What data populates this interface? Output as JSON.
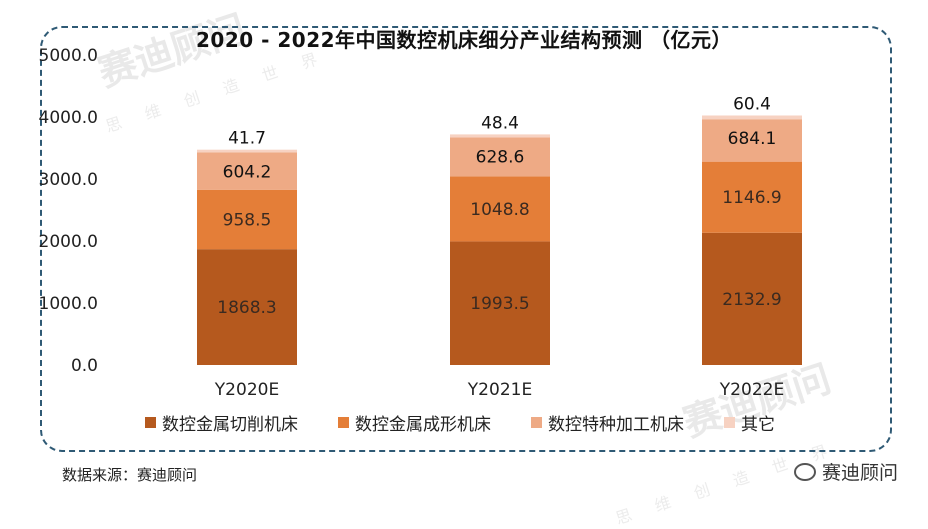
{
  "title": "2020 - 2022年中国数控机床细分产业结构预测 （亿元）",
  "source": "数据来源：赛迪顾问",
  "brand": "赛迪顾问",
  "watermark": {
    "text": "赛迪顾问",
    "sub": "思 维 创 造 世 界"
  },
  "chart_data": {
    "type": "bar",
    "stacked": true,
    "title": "2020 - 2022年中国数控机床细分产业结构预测 （亿元）",
    "categories": [
      "Y2020E",
      "Y2021E",
      "Y2022E"
    ],
    "series": [
      {
        "name": "数控金属切削机床",
        "values": [
          1868.3,
          1993.5,
          2132.9
        ],
        "color": "#b5591e",
        "labels": [
          "1868.3",
          "1993.5",
          "2132.9"
        ]
      },
      {
        "name": "数控金属成形机床",
        "values": [
          958.5,
          1048.8,
          1146.9
        ],
        "color": "#e47e38",
        "labels": [
          "958.5",
          "1048.8",
          "1146.9"
        ]
      },
      {
        "name": "数控特种加工机床",
        "values": [
          604.2,
          628.6,
          684.1
        ],
        "color": "#eeaa85",
        "labels": [
          "604.2",
          "628.6",
          "684.1"
        ]
      },
      {
        "name": "其它",
        "values": [
          41.7,
          48.4,
          60.4
        ],
        "color": "#f7d2c2",
        "labels": [
          "41.7",
          "48.4",
          "60.4"
        ]
      }
    ],
    "ylim": [
      0,
      5000
    ],
    "yticks": [
      "0.0",
      "1000.0",
      "2000.0",
      "3000.0",
      "4000.0",
      "5000.0"
    ],
    "ytick_values": [
      0,
      1000,
      2000,
      3000,
      4000,
      5000
    ],
    "grid": false,
    "legend": "bottom"
  }
}
